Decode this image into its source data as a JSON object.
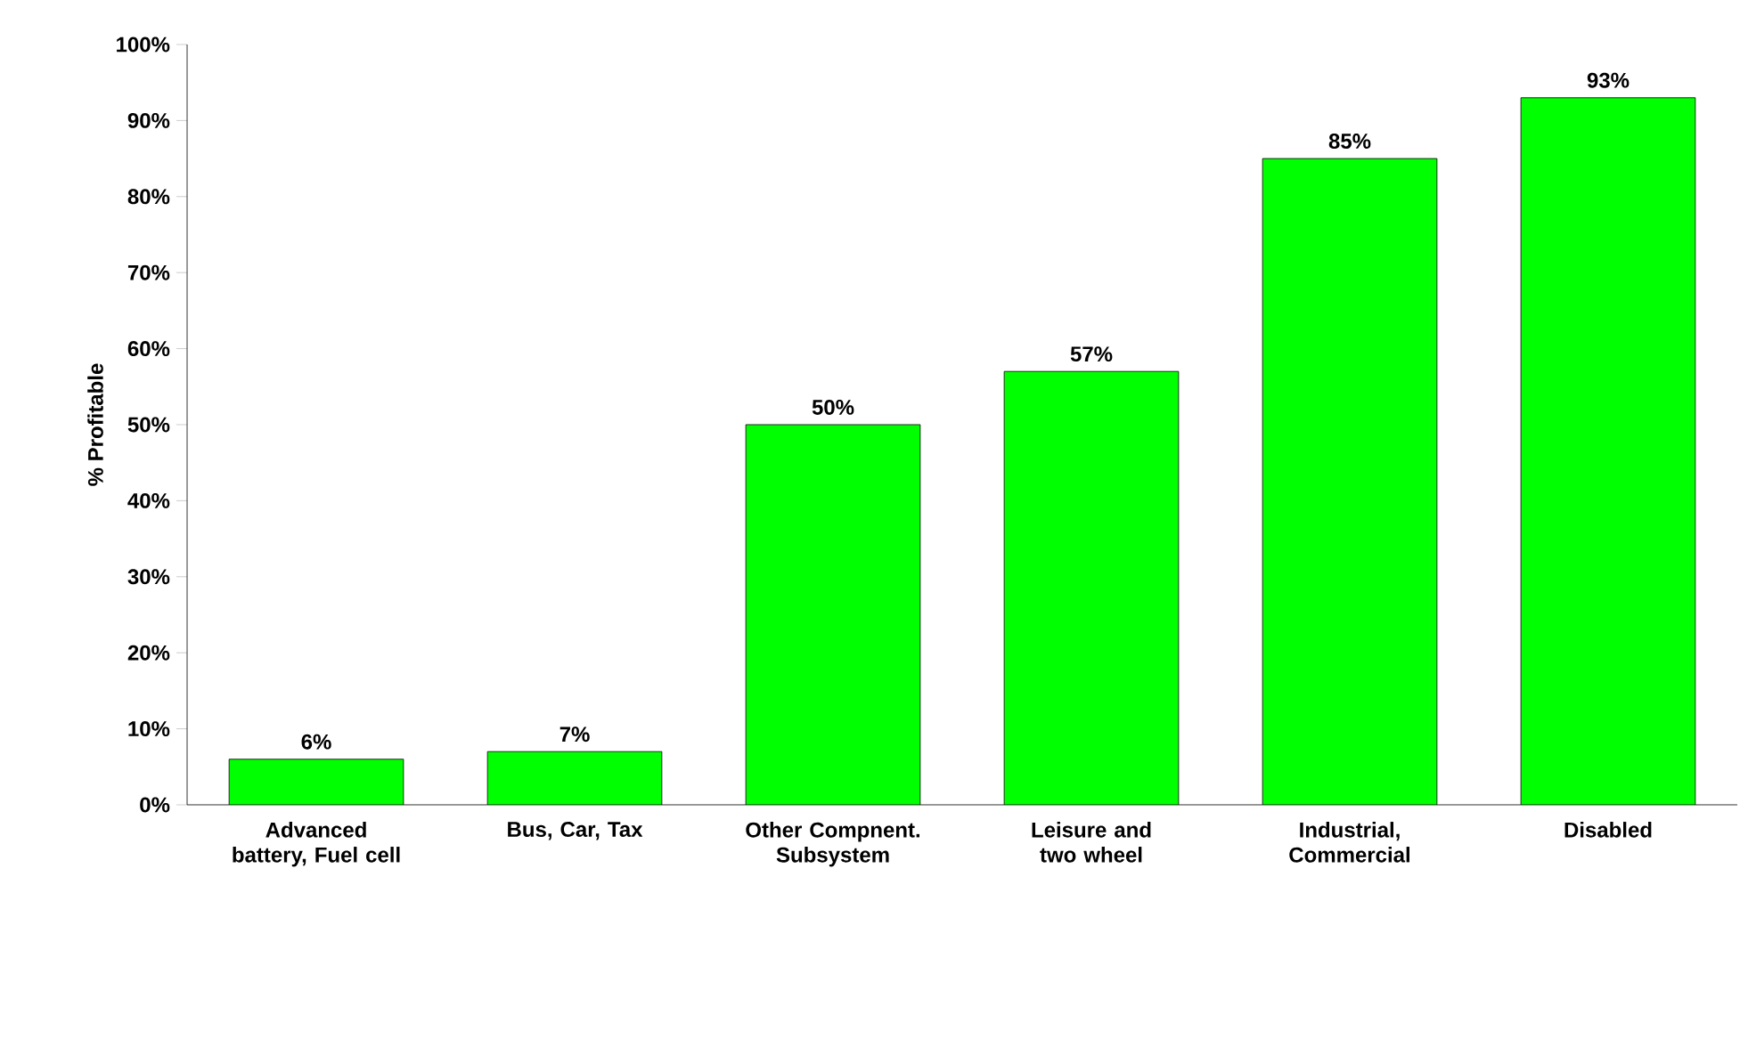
{
  "chart_data": {
    "type": "bar",
    "ylabel": "% Profitable",
    "categories": [
      "Advanced battery, Fuel cell",
      "Bus, Car, Tax",
      "Other Compnent. Subsystem",
      "Leisure and two wheel",
      "Industrial, Commercial",
      "Disabled"
    ],
    "values": [
      6,
      7,
      50,
      57,
      85,
      93
    ],
    "value_labels": [
      "6%",
      "7%",
      "50%",
      "57%",
      "85%",
      "93%"
    ],
    "color": "#00ff00",
    "ylim": [
      0,
      100
    ],
    "yticks": [
      {
        "value": 0,
        "label": "0%"
      },
      {
        "value": 10,
        "label": "10%"
      },
      {
        "value": 20,
        "label": "20%"
      },
      {
        "value": 30,
        "label": "30%"
      },
      {
        "value": 40,
        "label": "40%"
      },
      {
        "value": 50,
        "label": "50%"
      },
      {
        "value": 60,
        "label": "60%"
      },
      {
        "value": 70,
        "label": "70%"
      },
      {
        "value": 80,
        "label": "80%"
      },
      {
        "value": 90,
        "label": "90%"
      },
      {
        "value": 100,
        "label": "100%"
      }
    ]
  }
}
